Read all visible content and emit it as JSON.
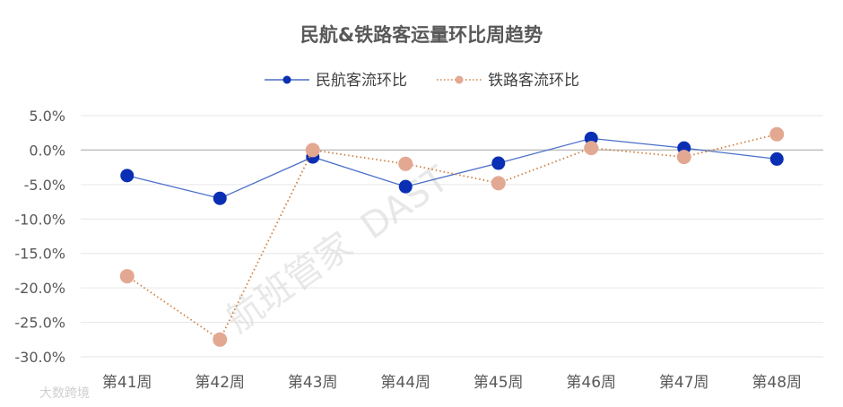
{
  "chart_data": {
    "type": "line",
    "title": "民航&铁路客运量环比周趋势",
    "xlabel": "",
    "ylabel": "",
    "categories": [
      "第41周",
      "第42周",
      "第43周",
      "第44周",
      "第45周",
      "第46周",
      "第47周",
      "第48周"
    ],
    "series": [
      {
        "name": "民航客流环比",
        "values": [
          -3.7,
          -7.0,
          -1.0,
          -5.3,
          -1.9,
          1.7,
          0.3,
          -1.3
        ],
        "color": "#0a2fb4",
        "line_style": "solid",
        "line_color": "#4a6fc8"
      },
      {
        "name": "铁路客流环比",
        "values": [
          -18.3,
          -27.5,
          0.0,
          -2.0,
          -4.8,
          0.3,
          -1.0,
          2.3
        ],
        "color": "#e3a892",
        "line_style": "dotted",
        "line_color": "#d08040"
      }
    ],
    "ylim": [
      -30,
      5
    ],
    "ytick_step": 5,
    "y_tick_labels": [
      "5.0%",
      "0.0%",
      "-5.0%",
      "-10.0%",
      "-15.0%",
      "-20.0%",
      "-25.0%",
      "-30.0%"
    ],
    "grid": true,
    "legend_position": "top"
  },
  "watermark": {
    "main_text": "航班管家",
    "sub_text": "DAST",
    "corner_text": "大数跨境"
  }
}
